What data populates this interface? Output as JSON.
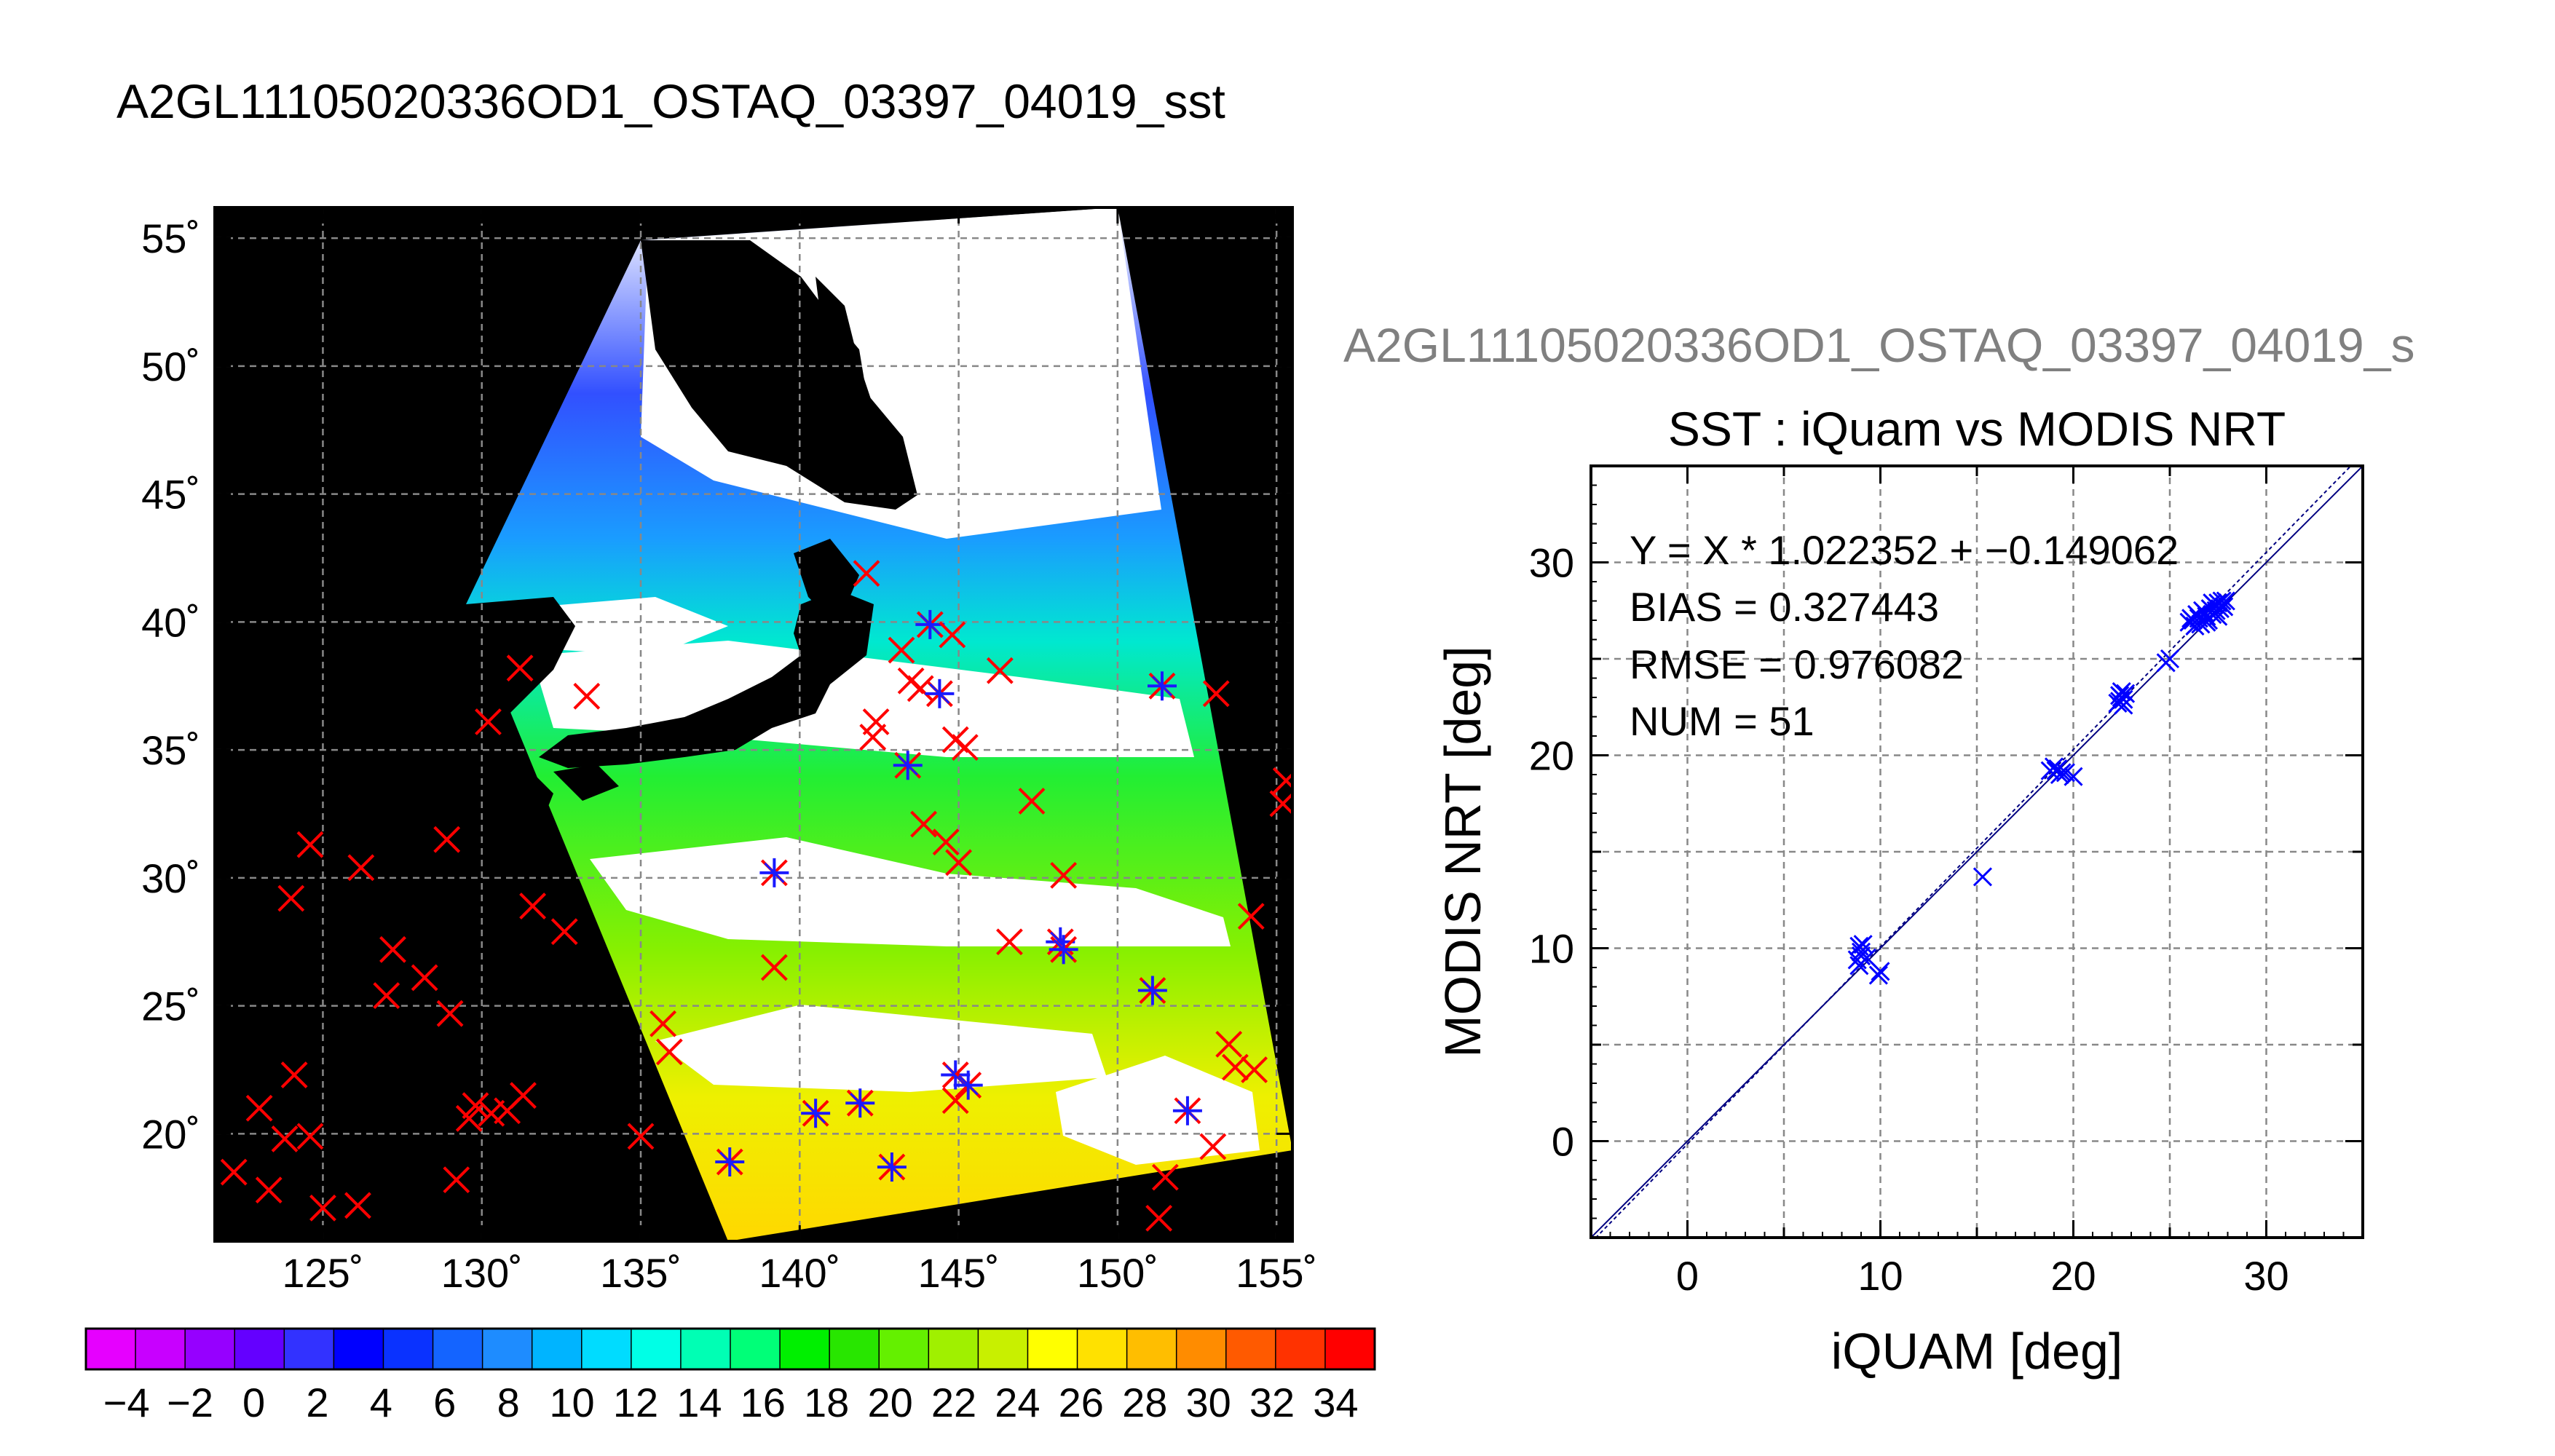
{
  "main_title": "A2GL11105020336OD1_OSTAQ_03397_04019_sst",
  "map": {
    "lon_ticks": [
      125,
      130,
      135,
      140,
      145,
      150,
      155
    ],
    "lat_ticks": [
      20,
      25,
      30,
      35,
      40,
      45,
      50,
      55
    ],
    "lon_labels": [
      "125˚",
      "130˚",
      "135˚",
      "140˚",
      "145˚",
      "150˚",
      "155˚"
    ],
    "lat_labels": [
      "20˚",
      "25˚",
      "30˚",
      "35˚",
      "40˚",
      "45˚",
      "50˚",
      "55˚"
    ],
    "lon_range": [
      121.6,
      155.5
    ],
    "lat_range": [
      15.8,
      56.2
    ],
    "outside_swath_color": "#000000",
    "land_color": "#000000",
    "cloud_color": "#ffffff",
    "marker_colors": {
      "unmatched": "#ff0000",
      "matched": "#1a1aff"
    },
    "insitu_markers": [
      {
        "lon": 122.2,
        "lat": 18.5,
        "m": false
      },
      {
        "lon": 123.0,
        "lat": 21.0,
        "m": false
      },
      {
        "lon": 123.3,
        "lat": 17.8,
        "m": false
      },
      {
        "lon": 123.8,
        "lat": 19.8,
        "m": false
      },
      {
        "lon": 124.0,
        "lat": 29.2,
        "m": false
      },
      {
        "lon": 124.1,
        "lat": 22.3,
        "m": false
      },
      {
        "lon": 124.6,
        "lat": 19.9,
        "m": false
      },
      {
        "lon": 124.6,
        "lat": 31.3,
        "m": false
      },
      {
        "lon": 125.0,
        "lat": 17.1,
        "m": false
      },
      {
        "lon": 126.1,
        "lat": 17.2,
        "m": false
      },
      {
        "lon": 126.2,
        "lat": 30.4,
        "m": false
      },
      {
        "lon": 127.0,
        "lat": 25.4,
        "m": false
      },
      {
        "lon": 127.2,
        "lat": 27.2,
        "m": false
      },
      {
        "lon": 128.2,
        "lat": 26.1,
        "m": false
      },
      {
        "lon": 128.9,
        "lat": 31.5,
        "m": false
      },
      {
        "lon": 129.0,
        "lat": 24.7,
        "m": false
      },
      {
        "lon": 129.2,
        "lat": 18.2,
        "m": false
      },
      {
        "lon": 129.6,
        "lat": 20.6,
        "m": false
      },
      {
        "lon": 129.8,
        "lat": 21.1,
        "m": false
      },
      {
        "lon": 130.3,
        "lat": 20.8,
        "m": false
      },
      {
        "lon": 130.2,
        "lat": 36.1,
        "m": false
      },
      {
        "lon": 130.8,
        "lat": 20.9,
        "m": false
      },
      {
        "lon": 131.2,
        "lat": 38.2,
        "m": false
      },
      {
        "lon": 131.3,
        "lat": 21.5,
        "m": false
      },
      {
        "lon": 131.6,
        "lat": 28.9,
        "m": false
      },
      {
        "lon": 132.6,
        "lat": 27.9,
        "m": false
      },
      {
        "lon": 133.3,
        "lat": 37.1,
        "m": false
      },
      {
        "lon": 135.0,
        "lat": 19.9,
        "m": false
      },
      {
        "lon": 135.7,
        "lat": 24.3,
        "m": false
      },
      {
        "lon": 135.9,
        "lat": 23.2,
        "m": false
      },
      {
        "lon": 137.8,
        "lat": 18.9,
        "m": true
      },
      {
        "lon": 139.2,
        "lat": 30.2,
        "m": true
      },
      {
        "lon": 139.2,
        "lat": 26.5,
        "m": false
      },
      {
        "lon": 140.5,
        "lat": 20.8,
        "m": true
      },
      {
        "lon": 141.9,
        "lat": 21.2,
        "m": true
      },
      {
        "lon": 142.1,
        "lat": 41.9,
        "m": false
      },
      {
        "lon": 142.3,
        "lat": 35.5,
        "m": false
      },
      {
        "lon": 142.4,
        "lat": 36.1,
        "m": false
      },
      {
        "lon": 142.9,
        "lat": 18.7,
        "m": true
      },
      {
        "lon": 143.2,
        "lat": 38.9,
        "m": false
      },
      {
        "lon": 143.4,
        "lat": 34.4,
        "m": true
      },
      {
        "lon": 143.5,
        "lat": 37.7,
        "m": false
      },
      {
        "lon": 143.8,
        "lat": 37.4,
        "m": false
      },
      {
        "lon": 143.9,
        "lat": 32.1,
        "m": false
      },
      {
        "lon": 144.1,
        "lat": 39.9,
        "m": true
      },
      {
        "lon": 144.4,
        "lat": 37.2,
        "m": true
      },
      {
        "lon": 144.6,
        "lat": 31.4,
        "m": false
      },
      {
        "lon": 144.8,
        "lat": 39.5,
        "m": false
      },
      {
        "lon": 144.9,
        "lat": 35.4,
        "m": false
      },
      {
        "lon": 144.9,
        "lat": 22.3,
        "m": true
      },
      {
        "lon": 144.9,
        "lat": 21.3,
        "m": false
      },
      {
        "lon": 145.0,
        "lat": 30.6,
        "m": false
      },
      {
        "lon": 145.2,
        "lat": 35.1,
        "m": false
      },
      {
        "lon": 145.3,
        "lat": 21.9,
        "m": true
      },
      {
        "lon": 146.3,
        "lat": 38.1,
        "m": false
      },
      {
        "lon": 146.6,
        "lat": 27.5,
        "m": false
      },
      {
        "lon": 147.3,
        "lat": 33.0,
        "m": false
      },
      {
        "lon": 148.2,
        "lat": 27.5,
        "m": true
      },
      {
        "lon": 148.3,
        "lat": 27.2,
        "m": true
      },
      {
        "lon": 148.3,
        "lat": 30.1,
        "m": false
      },
      {
        "lon": 151.1,
        "lat": 25.6,
        "m": true
      },
      {
        "lon": 151.4,
        "lat": 37.5,
        "m": true
      },
      {
        "lon": 151.5,
        "lat": 18.3,
        "m": false
      },
      {
        "lon": 151.3,
        "lat": 16.7,
        "m": false
      },
      {
        "lon": 152.2,
        "lat": 20.9,
        "m": true
      },
      {
        "lon": 153.0,
        "lat": 19.5,
        "m": false
      },
      {
        "lon": 153.1,
        "lat": 37.2,
        "m": false
      },
      {
        "lon": 153.5,
        "lat": 23.5,
        "m": false
      },
      {
        "lon": 153.7,
        "lat": 22.6,
        "m": false
      },
      {
        "lon": 154.2,
        "lat": 28.5,
        "m": false
      },
      {
        "lon": 154.3,
        "lat": 22.5,
        "m": false
      },
      {
        "lon": 155.3,
        "lat": 33.8,
        "m": false
      },
      {
        "lon": 155.2,
        "lat": 32.9,
        "m": false
      }
    ]
  },
  "colorbar": {
    "labels": [
      "−4",
      "−2",
      "0",
      "2",
      "4",
      "6",
      "8",
      "10",
      "12",
      "14",
      "16",
      "18",
      "20",
      "22",
      "24",
      "26",
      "28",
      "30",
      "32",
      "34"
    ],
    "colors": [
      "#e600ff",
      "#c800ff",
      "#9600ff",
      "#6400ff",
      "#3232ff",
      "#0000ff",
      "#0a32ff",
      "#1464ff",
      "#1e8cff",
      "#00b4ff",
      "#00dcff",
      "#00ffe6",
      "#00ffb4",
      "#00ff78",
      "#00f000",
      "#28e600",
      "#64f000",
      "#a0f000",
      "#c8f000",
      "#ffff00",
      "#ffe100",
      "#ffbe00",
      "#ff8c00",
      "#ff5a00",
      "#ff3200",
      "#ff0000"
    ]
  },
  "chart_data": {
    "type": "scatter",
    "page_title": "A2GL11105020336OD1_OSTAQ_03397_04019_s",
    "title": "SST : iQuam vs MODIS NRT",
    "xlabel": "iQUAM [deg]",
    "ylabel": "MODIS NRT [deg]",
    "xlim": [
      -5,
      35
    ],
    "ylim": [
      -5,
      35
    ],
    "xticks": [
      0,
      10,
      20,
      30
    ],
    "yticks": [
      0,
      10,
      20,
      30
    ],
    "grid": true,
    "marker_color": "#0000ff",
    "annotations": [
      "Y = X * 1.022352 + −0.149062",
      "BIAS = 0.327443",
      "RMSE = 0.976082",
      "NUM = 51"
    ],
    "fit": {
      "slope": 1.022352,
      "intercept": -0.149062
    },
    "points": [
      [
        8.8,
        9.4
      ],
      [
        8.9,
        10.1
      ],
      [
        9.0,
        9.8
      ],
      [
        9.1,
        10.2
      ],
      [
        9.0,
        9.6
      ],
      [
        9.3,
        9.5
      ],
      [
        9.9,
        8.6
      ],
      [
        10.0,
        8.8
      ],
      [
        15.3,
        13.7
      ],
      [
        18.8,
        19.2
      ],
      [
        19.0,
        19.4
      ],
      [
        19.2,
        19.3
      ],
      [
        19.3,
        19.0
      ],
      [
        19.6,
        19.1
      ],
      [
        20.0,
        18.9
      ],
      [
        22.3,
        22.7
      ],
      [
        22.4,
        23.1
      ],
      [
        22.5,
        23.0
      ],
      [
        22.6,
        22.9
      ],
      [
        22.7,
        23.2
      ],
      [
        22.6,
        22.6
      ],
      [
        24.8,
        24.8
      ],
      [
        25.0,
        25.0
      ],
      [
        26.0,
        26.9
      ],
      [
        26.2,
        27.0
      ],
      [
        26.3,
        26.7
      ],
      [
        26.5,
        27.1
      ],
      [
        26.6,
        26.8
      ],
      [
        26.8,
        27.4
      ],
      [
        26.9,
        27.2
      ],
      [
        27.0,
        27.0
      ],
      [
        27.1,
        27.6
      ],
      [
        27.2,
        27.3
      ],
      [
        27.3,
        27.8
      ],
      [
        27.4,
        27.5
      ],
      [
        27.5,
        27.9
      ],
      [
        27.6,
        27.6
      ],
      [
        27.7,
        28.0
      ],
      [
        27.8,
        27.7
      ],
      [
        27.2,
        27.9
      ],
      [
        26.9,
        26.9
      ],
      [
        26.4,
        27.3
      ],
      [
        22.4,
        22.8
      ],
      [
        19.1,
        19.2
      ],
      [
        8.9,
        9.1
      ],
      [
        27.5,
        27.2
      ],
      [
        26.7,
        27.5
      ],
      [
        22.5,
        23.3
      ],
      [
        19.4,
        19.1
      ],
      [
        27.9,
        28.0
      ],
      [
        26.1,
        27.1
      ]
    ]
  }
}
